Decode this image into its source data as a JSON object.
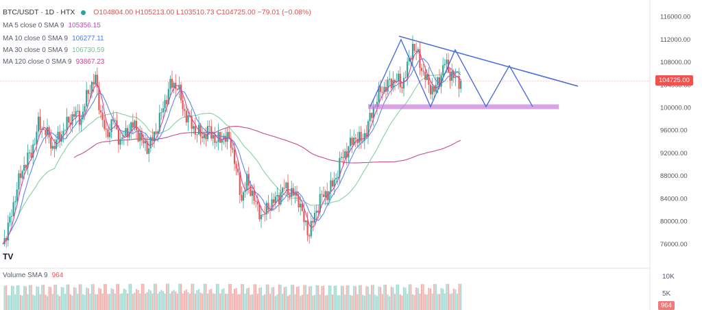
{
  "header": {
    "symbol": "BTC/USDT · 1D · HTX",
    "ohlc": "O104804.00 H105213.00 L103510.73 C104725.00 −79.01 (−0.08%)"
  },
  "indicators": [
    {
      "label": "MA 5 close 0 SMA 9",
      "value": "105356.15",
      "color": "#cc44cc"
    },
    {
      "label": "MA 10 close 0 SMA 9",
      "value": "106277.11",
      "color": "#4a7cf0"
    },
    {
      "label": "MA 30 close 0 SMA 9",
      "value": "106730.59",
      "color": "#6bc98a"
    },
    {
      "label": "MA 120 close 0 SMA 9",
      "value": "93867.23",
      "color": "#cc4488"
    }
  ],
  "volume": {
    "label": "Volume SMA 9",
    "value": "964",
    "ticks": [
      "10K",
      "5K"
    ],
    "current": "964"
  },
  "last_price": "104725.00",
  "logo": "TV",
  "chart_data": {
    "type": "candlestick",
    "ylim": [
      72000,
      118000
    ],
    "y_ticks": [
      "116000.00",
      "112000.00",
      "108000.00",
      "104000.00",
      "100000.00",
      "96000.00",
      "92000.00",
      "88000.00",
      "84000.00",
      "80000.00",
      "76000.00"
    ],
    "colors": {
      "up": "#26a69a",
      "down": "#ef5350",
      "ma5": "#e0409a",
      "ma10": "#5b86e5",
      "ma30": "#7fd3a0",
      "ma120": "#c44a93",
      "pattern": "#4a6fd8",
      "support": "#c77dd8"
    },
    "close_path": [
      [
        0,
        76000
      ],
      [
        4,
        80000
      ],
      [
        8,
        86000
      ],
      [
        12,
        90000
      ],
      [
        16,
        92000
      ],
      [
        20,
        97000
      ],
      [
        24,
        96000
      ],
      [
        28,
        93000
      ],
      [
        32,
        95000
      ],
      [
        36,
        97000
      ],
      [
        40,
        99000
      ],
      [
        44,
        98000
      ],
      [
        48,
        103000
      ],
      [
        52,
        105000
      ],
      [
        55,
        99000
      ],
      [
        58,
        95000
      ],
      [
        62,
        98000
      ],
      [
        66,
        94000
      ],
      [
        70,
        96000
      ],
      [
        74,
        97000
      ],
      [
        78,
        94000
      ],
      [
        82,
        93000
      ],
      [
        86,
        96000
      ],
      [
        90,
        100000
      ],
      [
        94,
        104000
      ],
      [
        98,
        104000
      ],
      [
        101,
        100000
      ],
      [
        104,
        98000
      ],
      [
        108,
        96000
      ],
      [
        112,
        95000
      ],
      [
        116,
        96000
      ],
      [
        120,
        94000
      ],
      [
        124,
        95000
      ],
      [
        128,
        94000
      ],
      [
        131,
        89000
      ],
      [
        134,
        84000
      ],
      [
        137,
        87000
      ],
      [
        140,
        85000
      ],
      [
        143,
        82000
      ],
      [
        146,
        81000
      ],
      [
        150,
        83000
      ],
      [
        154,
        84000
      ],
      [
        158,
        86000
      ],
      [
        162,
        85000
      ],
      [
        166,
        84000
      ],
      [
        169,
        80000
      ],
      [
        172,
        78000
      ],
      [
        175,
        81000
      ],
      [
        178,
        84000
      ],
      [
        182,
        85000
      ],
      [
        186,
        87000
      ],
      [
        190,
        91000
      ],
      [
        194,
        93000
      ],
      [
        198,
        95000
      ],
      [
        201,
        94000
      ],
      [
        204,
        96000
      ],
      [
        208,
        100000
      ],
      [
        212,
        103000
      ],
      [
        216,
        104000
      ],
      [
        220,
        105000
      ],
      [
        224,
        104000
      ],
      [
        227,
        107000
      ],
      [
        230,
        111000
      ],
      [
        233,
        109000
      ],
      [
        236,
        106000
      ],
      [
        239,
        104000
      ],
      [
        242,
        103000
      ],
      [
        245,
        105000
      ],
      [
        248,
        108000
      ],
      [
        251,
        106000
      ],
      [
        254,
        105000
      ],
      [
        257,
        104725
      ]
    ],
    "volume_max": 10000
  }
}
